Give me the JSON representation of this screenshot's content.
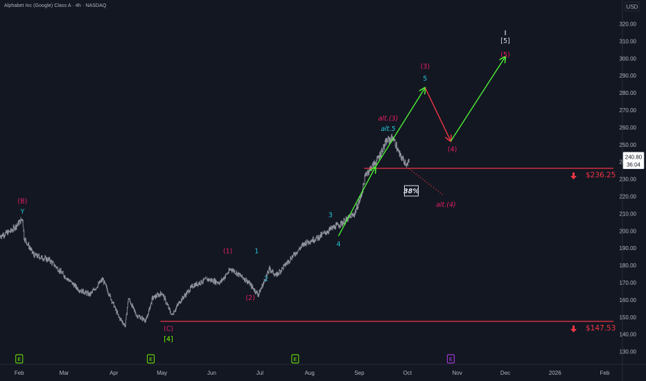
{
  "header": {
    "title": "Alphabet Inc (Google) Class A · 4h · NASDAQ"
  },
  "axis": {
    "currency": "USD"
  },
  "price_tag": {
    "price": "240.80",
    "countdown": "36:04"
  },
  "colors": {
    "bg": "#131722",
    "candle": "#9598a1",
    "magenta": "#e91e63",
    "cyan": "#26c6da",
    "green_wave": "#76ff03",
    "white_wave": "#e0e3eb",
    "red": "#f23645",
    "up_arrow": "#4cf235",
    "down_arrow": "#f23645"
  },
  "chart_data": {
    "type": "line",
    "ylim": [
      125,
      325
    ],
    "y_ticks": [
      130,
      140,
      150,
      160,
      170,
      180,
      190,
      200,
      210,
      220,
      230,
      240,
      250,
      260,
      270,
      280,
      290,
      300,
      310,
      320
    ],
    "y_tick_labels": [
      "130.00",
      "140.00",
      "150.00",
      "160.00",
      "170.00",
      "180.00",
      "190.00",
      "200.00",
      "210.00",
      "220.00",
      "230.00",
      "240.00",
      "250.00",
      "260.00",
      "270.00",
      "280.00",
      "290.00",
      "300.00",
      "310.00",
      "320.00"
    ],
    "x_range": [
      "2025-01-20",
      "2026-02-12"
    ],
    "x_ticks": [
      {
        "date": "2025-02-01",
        "label": "Feb"
      },
      {
        "date": "2025-03-01",
        "label": "Mar"
      },
      {
        "date": "2025-04-01",
        "label": "Apr"
      },
      {
        "date": "2025-05-01",
        "label": "May"
      },
      {
        "date": "2025-06-01",
        "label": "Jun"
      },
      {
        "date": "2025-07-01",
        "label": "Jul"
      },
      {
        "date": "2025-08-01",
        "label": "Aug"
      },
      {
        "date": "2025-09-01",
        "label": "Sep"
      },
      {
        "date": "2025-10-01",
        "label": "Oct"
      },
      {
        "date": "2025-11-01",
        "label": "Nov"
      },
      {
        "date": "2025-12-01",
        "label": "Dec"
      },
      {
        "date": "2026-01-01",
        "label": "2026"
      },
      {
        "date": "2026-02-01",
        "label": "Feb"
      }
    ],
    "price_path": [
      [
        "2025-01-20",
        197
      ],
      [
        "2025-01-27",
        200
      ],
      [
        "2025-02-03",
        207
      ],
      [
        "2025-02-04",
        196
      ],
      [
        "2025-02-10",
        186
      ],
      [
        "2025-02-20",
        183
      ],
      [
        "2025-03-01",
        174
      ],
      [
        "2025-03-10",
        166
      ],
      [
        "2025-03-17",
        163
      ],
      [
        "2025-03-25",
        172
      ],
      [
        "2025-04-04",
        150
      ],
      [
        "2025-04-08",
        145
      ],
      [
        "2025-04-10",
        161
      ],
      [
        "2025-04-15",
        151
      ],
      [
        "2025-04-21",
        148
      ],
      [
        "2025-04-25",
        161
      ],
      [
        "2025-05-01",
        164
      ],
      [
        "2025-05-07",
        151
      ],
      [
        "2025-05-12",
        159
      ],
      [
        "2025-05-20",
        168
      ],
      [
        "2025-05-29",
        172
      ],
      [
        "2025-06-06",
        170
      ],
      [
        "2025-06-13",
        178
      ],
      [
        "2025-06-23",
        171
      ],
      [
        "2025-06-30",
        163
      ],
      [
        "2025-07-07",
        178
      ],
      [
        "2025-07-11",
        174
      ],
      [
        "2025-07-21",
        185
      ],
      [
        "2025-07-29",
        193
      ],
      [
        "2025-08-06",
        196
      ],
      [
        "2025-08-14",
        201
      ],
      [
        "2025-08-22",
        205
      ],
      [
        "2025-08-29",
        210
      ],
      [
        "2025-09-02",
        220
      ],
      [
        "2025-09-05",
        233
      ],
      [
        "2025-09-12",
        241
      ],
      [
        "2025-09-18",
        252
      ],
      [
        "2025-09-22",
        254
      ],
      [
        "2025-09-26",
        244
      ],
      [
        "2025-10-01",
        238
      ],
      [
        "2025-10-02",
        240.8
      ]
    ],
    "horizontal_levels": [
      {
        "price": 236.25,
        "label": "$236.25",
        "start": "2025-09-04"
      },
      {
        "price": 147.53,
        "label": "$147.53",
        "start": "2025-04-30"
      }
    ],
    "projections": [
      {
        "color": "green",
        "from": [
          "2025-08-19",
          197
        ],
        "to": [
          "2025-09-11",
          237
        ]
      },
      {
        "color": "green",
        "from": [
          "2025-09-11",
          237
        ],
        "to": [
          "2025-10-12",
          283
        ]
      },
      {
        "color": "red",
        "from": [
          "2025-10-12",
          283
        ],
        "to": [
          "2025-10-28",
          252
        ]
      },
      {
        "color": "green",
        "from": [
          "2025-10-28",
          252
        ],
        "to": [
          "2025-12-01",
          301
        ]
      },
      {
        "color": "red_dotted",
        "from": [
          "2025-10-02",
          236
        ],
        "to": [
          "2025-10-23",
          221
        ]
      }
    ],
    "wave_labels": [
      {
        "text": "(B)",
        "date": "2025-02-03",
        "price": 216,
        "color": "magenta"
      },
      {
        "text": "Y",
        "date": "2025-02-03",
        "price": 210,
        "color": "cyan"
      },
      {
        "text": "(C)",
        "date": "2025-05-05",
        "price": 142,
        "color": "magenta"
      },
      {
        "text": "[4]",
        "date": "2025-05-05",
        "price": 136,
        "color": "green"
      },
      {
        "text": "(1)",
        "date": "2025-06-11",
        "price": 187,
        "color": "magenta"
      },
      {
        "text": "1",
        "date": "2025-06-29",
        "price": 187,
        "color": "cyan"
      },
      {
        "text": "(2)",
        "date": "2025-06-25",
        "price": 160,
        "color": "magenta"
      },
      {
        "text": "2",
        "date": "2025-07-05",
        "price": 171,
        "color": "cyan"
      },
      {
        "text": "3",
        "date": "2025-08-14",
        "price": 208,
        "color": "cyan"
      },
      {
        "text": "4",
        "date": "2025-08-19",
        "price": 191,
        "color": "cyan"
      },
      {
        "text": "alt.(3)",
        "date": "2025-09-19",
        "price": 264,
        "color": "magenta"
      },
      {
        "text": "alt.5",
        "date": "2025-09-19",
        "price": 258,
        "color": "cyan"
      },
      {
        "text": "(3)",
        "date": "2025-10-12",
        "price": 294,
        "color": "magenta"
      },
      {
        "text": "5",
        "date": "2025-10-12",
        "price": 287,
        "color": "cyan"
      },
      {
        "text": "(4)",
        "date": "2025-10-29",
        "price": 246,
        "color": "magenta"
      },
      {
        "text": "alt.(4)",
        "date": "2025-10-25",
        "price": 214,
        "color": "magenta"
      },
      {
        "text": "[5]",
        "date": "2025-12-01",
        "price": 309,
        "color": "white"
      },
      {
        "text": "(5)",
        "date": "2025-12-01",
        "price": 301,
        "color": "magenta"
      }
    ],
    "probability_box": {
      "text": "38%",
      "date": "2025-10-03",
      "price": 223
    },
    "event_markers": [
      {
        "text": "E",
        "date": "2025-02-01",
        "color": "green"
      },
      {
        "text": "E",
        "date": "2025-04-24",
        "color": "green"
      },
      {
        "text": "E",
        "date": "2025-07-23",
        "color": "green"
      },
      {
        "text": "E",
        "date": "2025-10-28",
        "color": "purple"
      }
    ]
  }
}
